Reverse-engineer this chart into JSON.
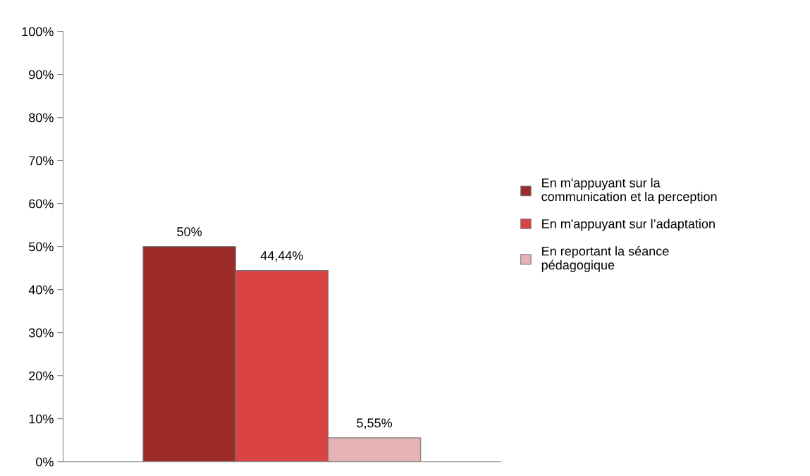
{
  "chart_data": {
    "type": "bar",
    "categories": [
      null
    ],
    "series": [
      {
        "name": "En m'appuyant sur la\ncommunication et la perception",
        "color": "#9c2b2a",
        "values": [
          50
        ],
        "value_labels": [
          "50%"
        ]
      },
      {
        "name": "En m'appuyant sur l’adaptation",
        "color": "#d94343",
        "values": [
          44.44
        ],
        "value_labels": [
          "44,44%"
        ]
      },
      {
        "name": "En reportant la séance\npédagogique",
        "color": "#e6b3b5",
        "values": [
          5.55
        ],
        "value_labels": [
          "5,55%"
        ]
      }
    ],
    "ylim": [
      0,
      100
    ],
    "yticks": [
      {
        "value": 0,
        "label": "0%"
      },
      {
        "value": 10,
        "label": "10%"
      },
      {
        "value": 20,
        "label": "20%"
      },
      {
        "value": 30,
        "label": "30%"
      },
      {
        "value": 40,
        "label": "40%"
      },
      {
        "value": 50,
        "label": "50%"
      },
      {
        "value": 60,
        "label": "60%"
      },
      {
        "value": 70,
        "label": "70%"
      },
      {
        "value": 80,
        "label": "80%"
      },
      {
        "value": 90,
        "label": "90%"
      },
      {
        "value": 100,
        "label": "100%"
      }
    ],
    "grid": false,
    "legend": "right"
  }
}
